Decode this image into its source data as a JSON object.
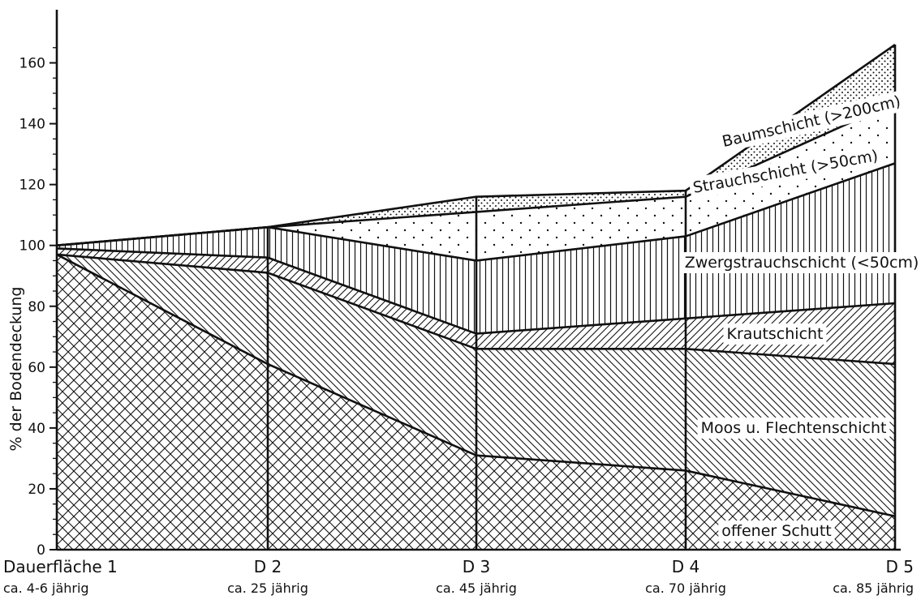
{
  "chart_data": {
    "type": "area",
    "stacked": true,
    "ylabel": "% der Bodendeckung",
    "xlabel": "",
    "ylim": [
      0,
      170
    ],
    "yticks": [
      0,
      20,
      40,
      60,
      80,
      100,
      120,
      140,
      160
    ],
    "categories": [
      "Dauerfläche 1",
      "D 2",
      "D 3",
      "D 4",
      "D 5"
    ],
    "category_sublabels": [
      "ca. 4-6 jährig",
      "ca. 25 jährig",
      "ca. 45 jährig",
      "ca. 70 jährig",
      "ca. 85 jährig"
    ],
    "series": [
      {
        "name": "offener Schutt",
        "pattern": "crosshatch",
        "values": [
          97,
          61,
          31,
          26,
          11
        ]
      },
      {
        "name": "Moos u. Flechtenschicht",
        "pattern": "hatch-backslash",
        "values": [
          0,
          30,
          35,
          40,
          50
        ]
      },
      {
        "name": "Krautschicht",
        "pattern": "hatch-slash",
        "values": [
          2,
          5,
          5,
          10,
          20
        ]
      },
      {
        "name": "Zwergstrauchschicht (<50cm)",
        "pattern": "vertical-lines",
        "values": [
          1,
          10,
          24,
          27,
          46
        ]
      },
      {
        "name": "Strauchschicht (>50cm)",
        "pattern": "sparse-dots",
        "values": [
          0,
          0,
          16,
          13,
          20
        ]
      },
      {
        "name": "Baumschicht (>200cm)",
        "pattern": "dense-dots",
        "values": [
          0,
          0,
          5,
          2,
          19
        ]
      }
    ],
    "grid": false,
    "legend": "inline labels"
  }
}
